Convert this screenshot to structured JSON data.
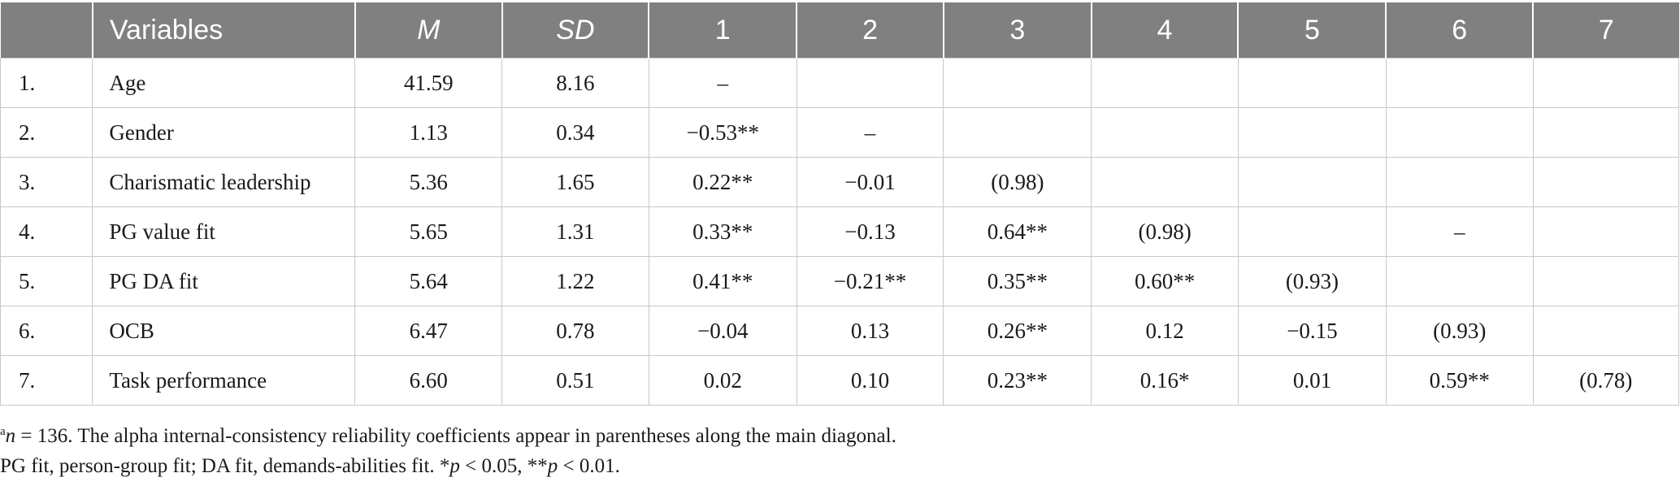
{
  "table": {
    "headers": [
      "",
      "Variables",
      "M",
      "SD",
      "1",
      "2",
      "3",
      "4",
      "5",
      "6",
      "7"
    ],
    "rows": [
      {
        "num": "1.",
        "variable": "Age",
        "m": "41.59",
        "sd": "8.16",
        "c1": "–",
        "c2": "",
        "c3": "",
        "c4": "",
        "c5": "",
        "c6": "",
        "c7": ""
      },
      {
        "num": "2.",
        "variable": "Gender",
        "m": "1.13",
        "sd": "0.34",
        "c1": "−0.53**",
        "c2": "–",
        "c3": "",
        "c4": "",
        "c5": "",
        "c6": "",
        "c7": ""
      },
      {
        "num": "3.",
        "variable": "Charismatic leadership",
        "m": "5.36",
        "sd": "1.65",
        "c1": "0.22**",
        "c2": "−0.01",
        "c3": "(0.98)",
        "c4": "",
        "c5": "",
        "c6": "",
        "c7": ""
      },
      {
        "num": "4.",
        "variable": "PG value fit",
        "m": "5.65",
        "sd": "1.31",
        "c1": "0.33**",
        "c2": "−0.13",
        "c3": "0.64**",
        "c4": "(0.98)",
        "c5": "",
        "c6": "–",
        "c7": ""
      },
      {
        "num": "5.",
        "variable": "PG DA fit",
        "m": "5.64",
        "sd": "1.22",
        "c1": "0.41**",
        "c2": "−0.21**",
        "c3": "0.35**",
        "c4": "0.60**",
        "c5": "(0.93)",
        "c6": "",
        "c7": ""
      },
      {
        "num": "6.",
        "variable": "OCB",
        "m": "6.47",
        "sd": "0.78",
        "c1": "−0.04",
        "c2": "0.13",
        "c3": "0.26**",
        "c4": "0.12",
        "c5": "−0.15",
        "c6": "(0.93)",
        "c7": ""
      },
      {
        "num": "7.",
        "variable": "Task performance",
        "m": "6.60",
        "sd": "0.51",
        "c1": "0.02",
        "c2": "0.10",
        "c3": "0.23**",
        "c4": "0.16*",
        "c5": "0.01",
        "c6": "0.59**",
        "c7": "(0.78)"
      }
    ]
  },
  "notes": {
    "line1_sup": "a",
    "line1_n": "n",
    "line1_text": " = 136. The alpha internal-consistency reliability coefficients appear in parentheses along the main diagonal.",
    "line2_a": "PG fit, person-group fit; DA fit, demands-abilities fit. *",
    "line2_p1": "p",
    "line2_b": " < 0.05, **",
    "line2_p2": "p",
    "line2_c": " < 0.01."
  }
}
